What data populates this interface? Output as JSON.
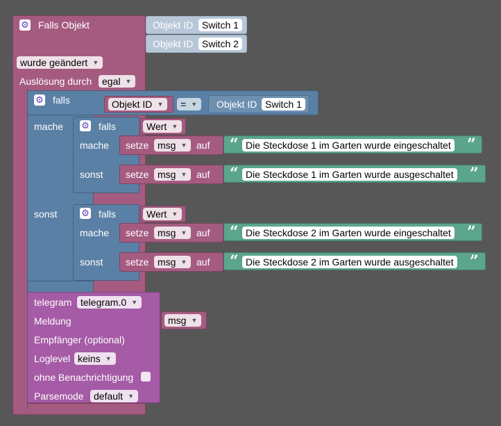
{
  "trigger": {
    "title": "Falls Objekt",
    "objects": [
      {
        "label": "Objekt ID",
        "value": "Switch 1"
      },
      {
        "label": "Objekt ID",
        "value": "Switch 2"
      }
    ],
    "condition": "wurde geändert",
    "trigger_label": "Auslösung durch",
    "trigger_value": "egal"
  },
  "outer_if": {
    "if_label": "falls",
    "left_dropdown": "Objekt ID",
    "operator": "=",
    "right_label": "Objekt ID",
    "right_value": "Switch 1",
    "do_label": "mache",
    "else_label": "sonst"
  },
  "inner_if_1": {
    "if_label": "falls",
    "var": "Wert",
    "do_label": "mache",
    "else_label": "sonst",
    "set_do": {
      "set": "setze",
      "var": "msg",
      "to": "auf",
      "text": "Die Steckdose 1 im Garten wurde eingeschaltet"
    },
    "set_else": {
      "set": "setze",
      "var": "msg",
      "to": "auf",
      "text": "Die Steckdose 1 im Garten wurde ausgeschaltet"
    }
  },
  "inner_if_2": {
    "if_label": "falls",
    "var": "Wert",
    "do_label": "mache",
    "else_label": "sonst",
    "set_do": {
      "set": "setze",
      "var": "msg",
      "to": "auf",
      "text": "Die Steckdose 2 im Garten wurde eingeschaltet"
    },
    "set_else": {
      "set": "setze",
      "var": "msg",
      "to": "auf",
      "text": "Die Steckdose 2 im Garten wurde ausgeschaltet"
    }
  },
  "telegram": {
    "label": "telegram",
    "instance": "telegram.0",
    "message_label": "Meldung",
    "message_var": "msg",
    "recipient_label": "Empfänger (optional)",
    "loglevel_label": "Loglevel",
    "loglevel_value": "keins",
    "silent_label": "ohne Benachrichtigung",
    "parsemode_label": "Parsemode",
    "parsemode_value": "default"
  },
  "icons": {
    "gear": "⚙",
    "dropdown_arrow": "▼",
    "open_quote": "“",
    "close_quote": "”"
  },
  "colors": {
    "background": "#575757",
    "trigger_block": "#a55b80",
    "logic_block": "#5b80a5",
    "text_block": "#5ba58c",
    "telegram_block": "#a55ba5"
  }
}
